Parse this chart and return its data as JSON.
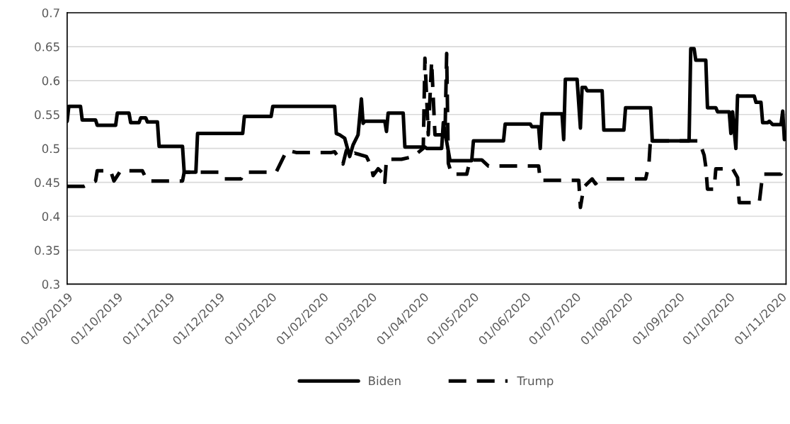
{
  "chart_data": {
    "type": "line",
    "ylim": [
      0.3,
      0.7
    ],
    "yticks": [
      0.3,
      0.35,
      0.4,
      0.45,
      0.5,
      0.55,
      0.6,
      0.65,
      0.7
    ],
    "xlim": [
      "2019-09-01",
      "2020-11-04"
    ],
    "xticks": [
      {
        "value": "2019-09-01",
        "label": "01/09/2019"
      },
      {
        "value": "2019-10-01",
        "label": "01/10/2019"
      },
      {
        "value": "2019-11-01",
        "label": "01/11/2019"
      },
      {
        "value": "2019-12-01",
        "label": "01/12/2019"
      },
      {
        "value": "2020-01-01",
        "label": "01/01/2020"
      },
      {
        "value": "2020-02-01",
        "label": "01/02/2020"
      },
      {
        "value": "2020-03-01",
        "label": "01/03/2020"
      },
      {
        "value": "2020-04-01",
        "label": "01/04/2020"
      },
      {
        "value": "2020-05-01",
        "label": "01/05/2020"
      },
      {
        "value": "2020-06-01",
        "label": "01/06/2020"
      },
      {
        "value": "2020-07-01",
        "label": "01/07/2020"
      },
      {
        "value": "2020-08-01",
        "label": "01/08/2020"
      },
      {
        "value": "2020-09-01",
        "label": "01/09/2020"
      },
      {
        "value": "2020-10-01",
        "label": "01/10/2020"
      },
      {
        "value": "2020-11-01",
        "label": "01/11/2020"
      }
    ],
    "grid": "y",
    "legend": "bottom",
    "marker": "none",
    "series": [
      {
        "name": "Biden",
        "color": "#000000",
        "line_style": "solid",
        "x": [
          "2019-09-01",
          "2019-09-02",
          "2019-09-09",
          "2019-09-10",
          "2019-09-18",
          "2019-09-19",
          "2019-09-30",
          "2019-10-01",
          "2019-10-08",
          "2019-10-09",
          "2019-10-14",
          "2019-10-15",
          "2019-10-18",
          "2019-10-19",
          "2019-10-25",
          "2019-10-26",
          "2019-11-09",
          "2019-11-10",
          "2019-11-17",
          "2019-11-18",
          "2019-12-15",
          "2019-12-16",
          "2020-01-01",
          "2020-01-02",
          "2020-02-08",
          "2020-02-09",
          "2020-02-11",
          "2020-02-14",
          "2020-02-17",
          "2020-02-19",
          "2020-02-22",
          "2020-02-24",
          "2020-02-25",
          "2020-02-26",
          "2020-03-09",
          "2020-03-10",
          "2020-03-11",
          "2020-03-20",
          "2020-03-21",
          "2020-04-02",
          "2020-04-03",
          "2020-04-12",
          "2020-04-13",
          "2020-04-17",
          "2020-04-30",
          "2020-05-01",
          "2020-05-19",
          "2020-05-20",
          "2020-06-04",
          "2020-06-05",
          "2020-06-09",
          "2020-06-10",
          "2020-06-11",
          "2020-06-23",
          "2020-06-24",
          "2020-06-25",
          "2020-07-02",
          "2020-07-04",
          "2020-07-05",
          "2020-07-07",
          "2020-07-08",
          "2020-07-17",
          "2020-07-18",
          "2020-07-30",
          "2020-07-31",
          "2020-08-15",
          "2020-08-16",
          "2020-09-07",
          "2020-09-08",
          "2020-09-10",
          "2020-09-11",
          "2020-09-17",
          "2020-09-18",
          "2020-09-23",
          "2020-09-24",
          "2020-10-01",
          "2020-10-02",
          "2020-10-03",
          "2020-10-05",
          "2020-10-06",
          "2020-10-07",
          "2020-10-16",
          "2020-10-17",
          "2020-10-20",
          "2020-10-21",
          "2020-10-24",
          "2020-10-25",
          "2020-10-27",
          "2020-11-01",
          "2020-11-02",
          "2020-11-03"
        ],
        "values": [
          0.54,
          0.562,
          0.562,
          0.542,
          0.542,
          0.534,
          0.534,
          0.552,
          0.552,
          0.538,
          0.538,
          0.545,
          0.545,
          0.539,
          0.539,
          0.503,
          0.503,
          0.465,
          0.465,
          0.522,
          0.522,
          0.547,
          0.547,
          0.562,
          0.562,
          0.522,
          0.52,
          0.515,
          0.488,
          0.505,
          0.52,
          0.573,
          0.537,
          0.54,
          0.54,
          0.525,
          0.552,
          0.552,
          0.502,
          0.502,
          0.5,
          0.5,
          0.538,
          0.482,
          0.482,
          0.511,
          0.511,
          0.536,
          0.536,
          0.532,
          0.532,
          0.5,
          0.551,
          0.551,
          0.513,
          0.602,
          0.602,
          0.53,
          0.59,
          0.59,
          0.585,
          0.585,
          0.527,
          0.527,
          0.56,
          0.56,
          0.511,
          0.511,
          0.647,
          0.647,
          0.63,
          0.63,
          0.56,
          0.56,
          0.554,
          0.554,
          0.522,
          0.554,
          0.5,
          0.578,
          0.577,
          0.577,
          0.568,
          0.568,
          0.538,
          0.538,
          0.54,
          0.535,
          0.535,
          0.555,
          0.513
        ]
      },
      {
        "name": "Trump",
        "color": "#000000",
        "line_style": "dashed",
        "x": [
          "2019-09-01",
          "2019-09-11",
          "2019-09-18",
          "2019-09-19",
          "2019-09-27",
          "2019-09-29",
          "2019-10-03",
          "2019-10-16",
          "2019-10-19",
          "2019-11-09",
          "2019-11-10",
          "2019-12-01",
          "2019-12-03",
          "2019-12-14",
          "2019-12-16",
          "2020-01-04",
          "2020-01-06",
          "2020-01-09",
          "2020-01-11",
          "2020-01-16",
          "2020-02-06",
          "2020-02-08",
          "2020-02-13",
          "2020-02-15",
          "2020-02-16",
          "2020-02-20",
          "2020-02-27",
          "2020-03-01",
          "2020-03-02",
          "2020-03-05",
          "2020-03-08",
          "2020-03-09",
          "2020-03-10",
          "2020-03-19",
          "2020-03-26",
          "2020-04-01",
          "2020-04-02",
          "2020-04-04",
          "2020-04-06",
          "2020-04-08",
          "2020-04-14",
          "2020-04-15",
          "2020-04-16",
          "2020-04-18",
          "2020-04-27",
          "2020-04-29",
          "2020-05-06",
          "2020-05-10",
          "2020-06-09",
          "2020-06-10",
          "2020-07-03",
          "2020-07-04",
          "2020-07-06",
          "2020-07-11",
          "2020-07-13",
          "2020-07-17",
          "2020-08-12",
          "2020-08-14",
          "2020-08-15",
          "2020-08-16",
          "2020-09-13",
          "2020-09-16",
          "2020-09-17",
          "2020-09-18",
          "2020-09-22",
          "2020-09-23",
          "2020-10-03",
          "2020-10-06",
          "2020-10-07",
          "2020-10-19",
          "2020-10-21",
          "2020-11-01",
          "2020-11-03"
        ],
        "values": [
          0.444,
          0.444,
          0.452,
          0.467,
          0.467,
          0.452,
          0.467,
          0.467,
          0.452,
          0.452,
          0.465,
          0.465,
          0.455,
          0.455,
          0.465,
          0.465,
          0.475,
          0.49,
          0.497,
          0.494,
          0.494,
          0.495,
          0.477,
          0.497,
          0.488,
          0.493,
          0.488,
          0.473,
          0.46,
          0.47,
          0.463,
          0.45,
          0.484,
          0.484,
          0.488,
          0.5,
          0.633,
          0.52,
          0.628,
          0.52,
          0.52,
          0.64,
          0.478,
          0.462,
          0.462,
          0.483,
          0.483,
          0.474,
          0.474,
          0.453,
          0.453,
          0.413,
          0.443,
          0.455,
          0.448,
          0.455,
          0.455,
          0.477,
          0.517,
          0.511,
          0.511,
          0.49,
          0.473,
          0.44,
          0.44,
          0.47,
          0.47,
          0.457,
          0.42,
          0.42,
          0.462,
          0.462,
          0.478
        ]
      }
    ]
  }
}
